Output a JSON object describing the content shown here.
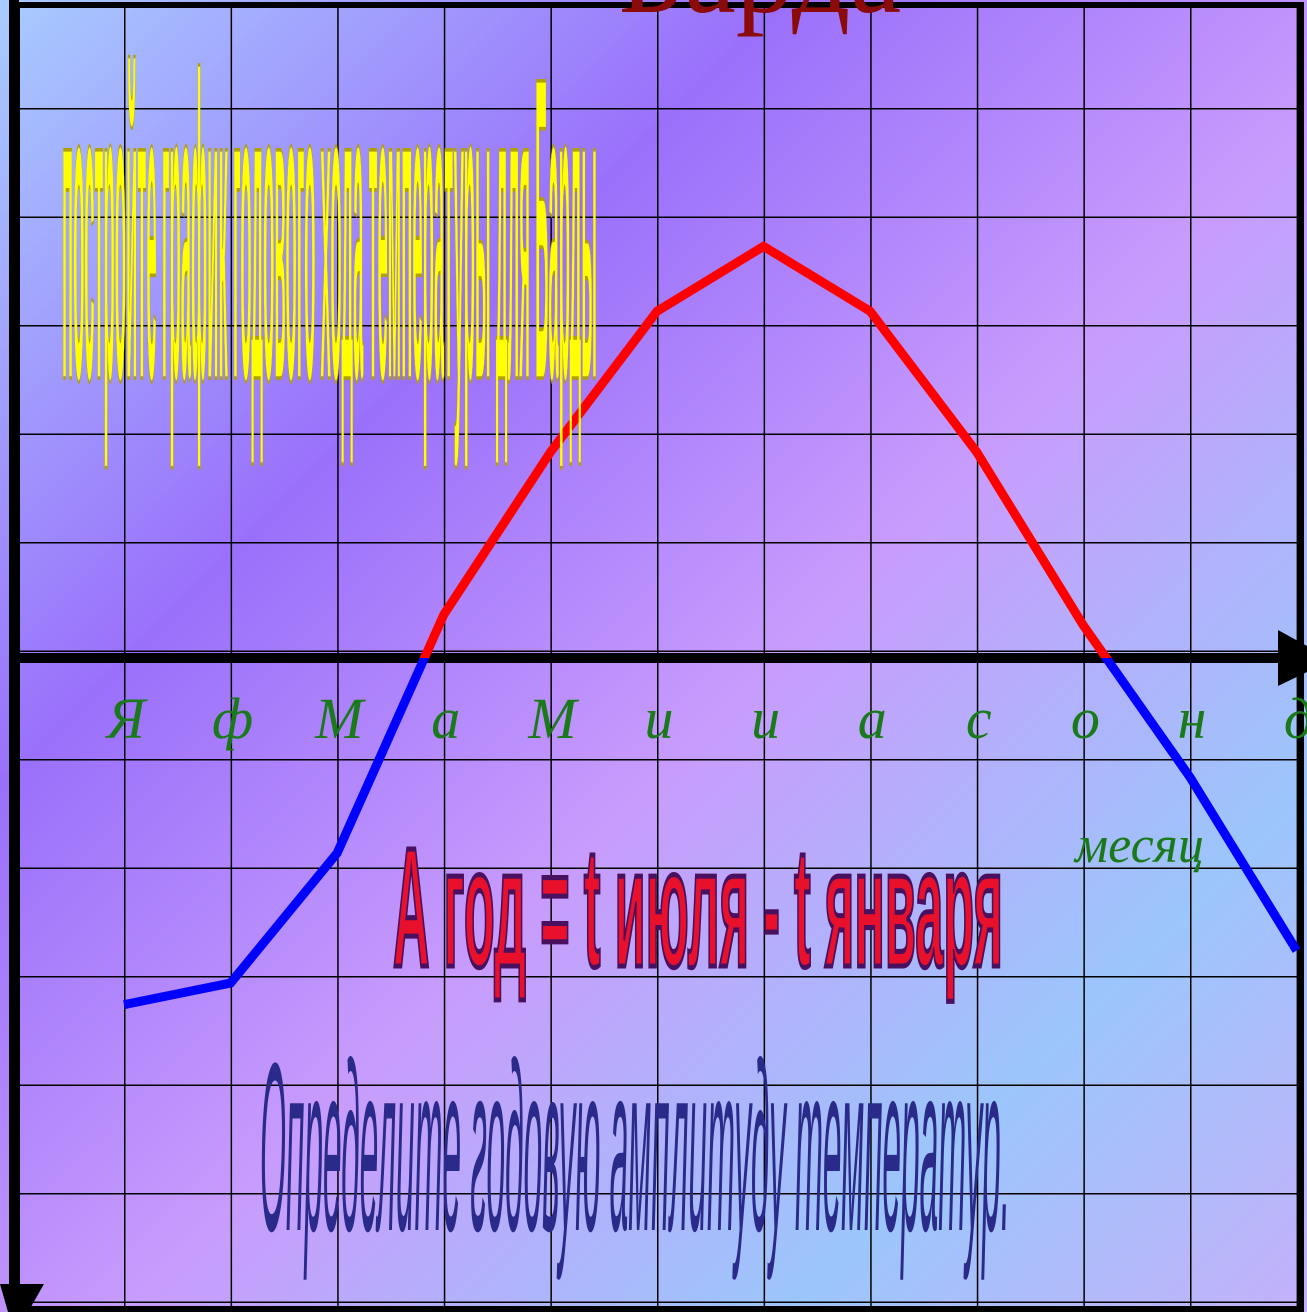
{
  "chart_data": {
    "type": "line",
    "title": "Барда",
    "annotations": [
      "постройте график годового хода температуры для Барды",
      "А год = t июля - t января",
      "Определите годовую амплитуду температур."
    ],
    "x_label": "месяц",
    "categories": [
      "Я",
      "ф",
      "М",
      "а",
      "М",
      "и",
      "и",
      "а",
      "с",
      "о",
      "н",
      "д"
    ],
    "values": [
      -3.2,
      -3.0,
      -1.8,
      0.4,
      1.9,
      3.2,
      3.8,
      3.2,
      1.9,
      0.3,
      -1.1,
      -2.7
    ],
    "color_above": "#ff0000",
    "color_below": "#0000ff",
    "ylim": [
      -6,
      6
    ],
    "grid": true
  }
}
